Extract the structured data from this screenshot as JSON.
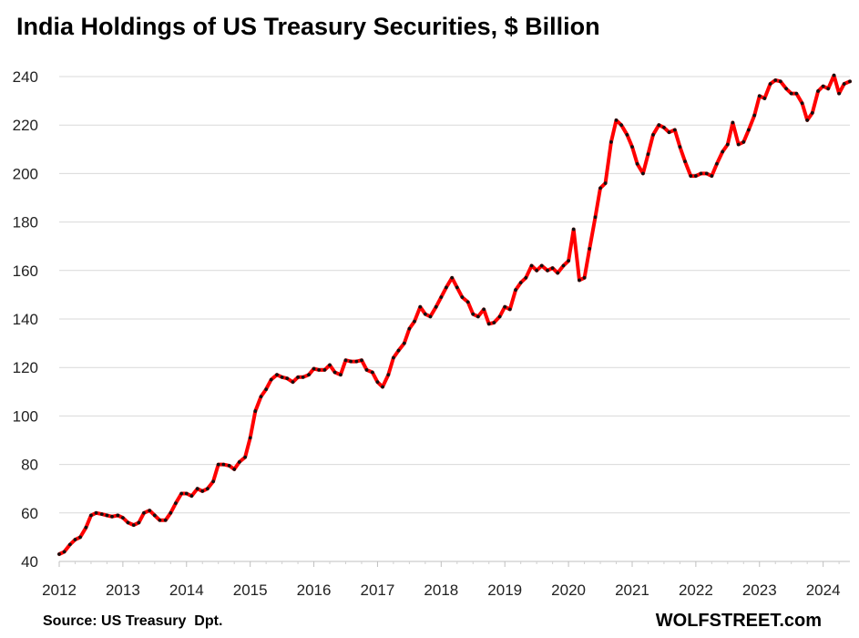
{
  "chart_data": {
    "type": "line",
    "title": "India Holdings of US Treasury Securities, $ Billion",
    "source": "Source: US Treasury  Dpt.",
    "brand": "WOLFSTREET.com",
    "xlabel": "",
    "ylabel": "",
    "xlim": [
      2012,
      2024.42
    ],
    "ylim": [
      40,
      240
    ],
    "yticks": [
      40,
      60,
      80,
      100,
      120,
      140,
      160,
      180,
      200,
      220,
      240
    ],
    "xticks": [
      "2012",
      "2013",
      "2014",
      "2015",
      "2016",
      "2017",
      "2018",
      "2019",
      "2020",
      "2021",
      "2022",
      "2023",
      "2024"
    ],
    "grid": "horizontal",
    "colors": {
      "line": "#ff0000",
      "marker": "#111111",
      "grid": "#d9d9d9"
    },
    "series": [
      {
        "x": [
          2012.0,
          2012.08,
          2012.17,
          2012.25,
          2012.33,
          2012.42,
          2012.5,
          2012.58,
          2012.67,
          2012.75,
          2012.83,
          2012.92,
          2013.0,
          2013.08,
          2013.17,
          2013.25,
          2013.33,
          2013.42,
          2013.5,
          2013.58,
          2013.67,
          2013.75,
          2013.83,
          2013.92,
          2014.0,
          2014.08,
          2014.17,
          2014.25,
          2014.33,
          2014.42,
          2014.5,
          2014.58,
          2014.67,
          2014.75,
          2014.83,
          2014.92,
          2015.0,
          2015.08,
          2015.17,
          2015.25,
          2015.33,
          2015.42,
          2015.5,
          2015.58,
          2015.67,
          2015.75,
          2015.83,
          2015.92,
          2016.0,
          2016.08,
          2016.17,
          2016.25,
          2016.33,
          2016.42,
          2016.5,
          2016.58,
          2016.67,
          2016.75,
          2016.83,
          2016.92,
          2017.0,
          2017.08,
          2017.17,
          2017.25,
          2017.33,
          2017.42,
          2017.5,
          2017.58,
          2017.67,
          2017.75,
          2017.83,
          2017.92,
          2018.0,
          2018.08,
          2018.17,
          2018.25,
          2018.33,
          2018.42,
          2018.5,
          2018.58,
          2018.67,
          2018.75,
          2018.83,
          2018.92,
          2019.0,
          2019.08,
          2019.17,
          2019.25,
          2019.33,
          2019.42,
          2019.5,
          2019.58,
          2019.67,
          2019.75,
          2019.83,
          2019.92,
          2020.0,
          2020.08,
          2020.17,
          2020.25,
          2020.33,
          2020.42,
          2020.5,
          2020.58,
          2020.67,
          2020.75,
          2020.83,
          2020.92,
          2021.0,
          2021.08,
          2021.17,
          2021.25,
          2021.33,
          2021.42,
          2021.5,
          2021.58,
          2021.67,
          2021.75,
          2021.83,
          2021.92,
          2022.0,
          2022.08,
          2022.17,
          2022.25,
          2022.33,
          2022.42,
          2022.5,
          2022.58,
          2022.67,
          2022.75,
          2022.83,
          2022.92,
          2023.0,
          2023.08,
          2023.17,
          2023.25,
          2023.33,
          2023.42,
          2023.5,
          2023.58,
          2023.67,
          2023.75,
          2023.83,
          2023.92,
          2024.0,
          2024.08,
          2024.17,
          2024.25,
          2024.33,
          2024.42
        ],
        "y": [
          43,
          44,
          47,
          49,
          50,
          54,
          59,
          60,
          59.5,
          59,
          58.5,
          59,
          58,
          56,
          55,
          56,
          60,
          61,
          59,
          57,
          57,
          60,
          64,
          68,
          68,
          67,
          70,
          69,
          70,
          73,
          80,
          80,
          79.5,
          78,
          81,
          83,
          91,
          102,
          108,
          111,
          115,
          117,
          116,
          115.5,
          114,
          116,
          116,
          117,
          119.5,
          119,
          119,
          121,
          118,
          117,
          123,
          122.5,
          122.5,
          123,
          119,
          118,
          114,
          112,
          117,
          124,
          127,
          130,
          136,
          139,
          145,
          142,
          141,
          145,
          149,
          153,
          157,
          153,
          149,
          147,
          142,
          141,
          144,
          138,
          138.5,
          141,
          145,
          144,
          152,
          155,
          157,
          162,
          160,
          162,
          160,
          161,
          159,
          162,
          164,
          177,
          156,
          157,
          169,
          182,
          194,
          196,
          213,
          222,
          220,
          216,
          211,
          204,
          200,
          208,
          216,
          220,
          219,
          217,
          218,
          211,
          205,
          199,
          199,
          200,
          200,
          199,
          204,
          209,
          212,
          221,
          212,
          213,
          218,
          224,
          232,
          231,
          237,
          238.5,
          238,
          235,
          233,
          233,
          229,
          222,
          225,
          234,
          236,
          235,
          240.5,
          233,
          237,
          238
        ]
      }
    ]
  }
}
